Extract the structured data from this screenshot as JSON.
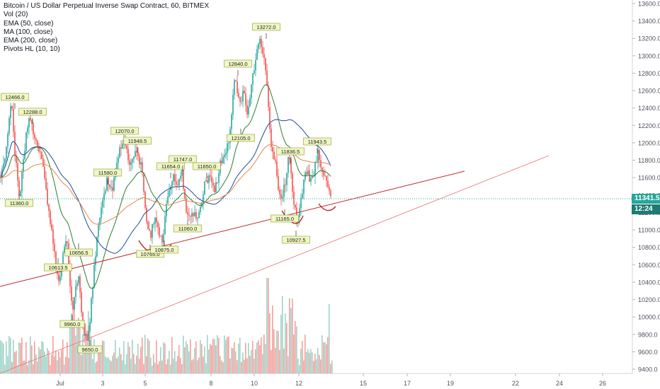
{
  "legend": {
    "title": "Bitcoin / US Dollar Perpetual Inverse Swap Contract, 60, BITMEX",
    "lines": [
      "Vol (20)",
      "EMA (50, close)",
      "MA (100, close)",
      "EMA (200, close)",
      "Pivots HL (10, 10)"
    ]
  },
  "price_axis": {
    "ticks": [
      "13600.0",
      "13400.0",
      "13200.0",
      "13000.0",
      "12800.0",
      "12600.0",
      "12400.0",
      "12200.0",
      "12000.0",
      "11800.0",
      "11600.0",
      "11400.0",
      "11200.0",
      "11000.0",
      "10800.0",
      "10600.0",
      "10400.0",
      "10200.0",
      "10000.0",
      "9800.0",
      "9600.0",
      "9400.0"
    ],
    "last_price": "11341.5",
    "countdown": "12:24"
  },
  "time_axis": {
    "ticks": [
      "Jul",
      "3",
      "5",
      "8",
      "10",
      "12",
      "15",
      "17",
      "19",
      "22",
      "24",
      "26"
    ]
  },
  "colors": {
    "up": "#26a69a",
    "down": "#ef5350",
    "vol_up": "#9fd3c7",
    "vol_down": "#f4a09c",
    "ema50": "#2e7d32",
    "ma100": "#1e4a9c",
    "ema200": "#e8864a",
    "trendline": "#c62828",
    "pivot_bg": "#f0f7c4",
    "last_price_line": "#26a69a",
    "countdown_bg": "#1e7a73"
  },
  "chart_data": {
    "type": "candlestick",
    "title": "Bitcoin / US Dollar Perpetual Inverse Swap Contract, 60, BITMEX",
    "interval": "60",
    "exchange": "BITMEX",
    "ylim": [
      9300,
      13650
    ],
    "indicators": [
      "Vol (20)",
      "EMA (50, close)",
      "MA (100, close)",
      "EMA (200, close)",
      "Pivots HL (10, 10)"
    ],
    "pivot_labels": [
      {
        "label": "12466.0",
        "price": 12466.0,
        "type": "high"
      },
      {
        "label": "12288.0",
        "price": 12288.0,
        "type": "high"
      },
      {
        "label": "11360.0",
        "price": 11360.0,
        "type": "low"
      },
      {
        "label": "10613.5",
        "price": 10613.5,
        "type": "low"
      },
      {
        "label": "10656.5",
        "price": 10656.5,
        "type": "low"
      },
      {
        "label": "9960.0",
        "price": 9960.0,
        "type": "low"
      },
      {
        "label": "9650.0",
        "price": 9650.0,
        "type": "low"
      },
      {
        "label": "11580.0",
        "price": 11580.0,
        "type": "high"
      },
      {
        "label": "12070.0",
        "price": 12070.0,
        "type": "high"
      },
      {
        "label": "11948.5",
        "price": 11948.5,
        "type": "high"
      },
      {
        "label": "10765.0",
        "price": 10765.0,
        "type": "low"
      },
      {
        "label": "10875.0",
        "price": 10875.0,
        "type": "low"
      },
      {
        "label": "11654.0",
        "price": 11654.0,
        "type": "high"
      },
      {
        "label": "11747.0",
        "price": 11747.0,
        "type": "high"
      },
      {
        "label": "11060.0",
        "price": 11060.0,
        "type": "low"
      },
      {
        "label": "11650.0",
        "price": 11650.0,
        "type": "high"
      },
      {
        "label": "12840.0",
        "price": 12840.0,
        "type": "high"
      },
      {
        "label": "12105.0",
        "price": 12105.0,
        "type": "low"
      },
      {
        "label": "13272.0",
        "price": 13272.0,
        "type": "high"
      },
      {
        "label": "11836.5",
        "price": 11836.5,
        "type": "high"
      },
      {
        "label": "11943.5",
        "price": 11943.5,
        "type": "high"
      },
      {
        "label": "11165.0",
        "price": 11165.0,
        "type": "low"
      },
      {
        "label": "10927.5",
        "price": 10927.5,
        "type": "low"
      }
    ],
    "last_price": 11341.5
  }
}
